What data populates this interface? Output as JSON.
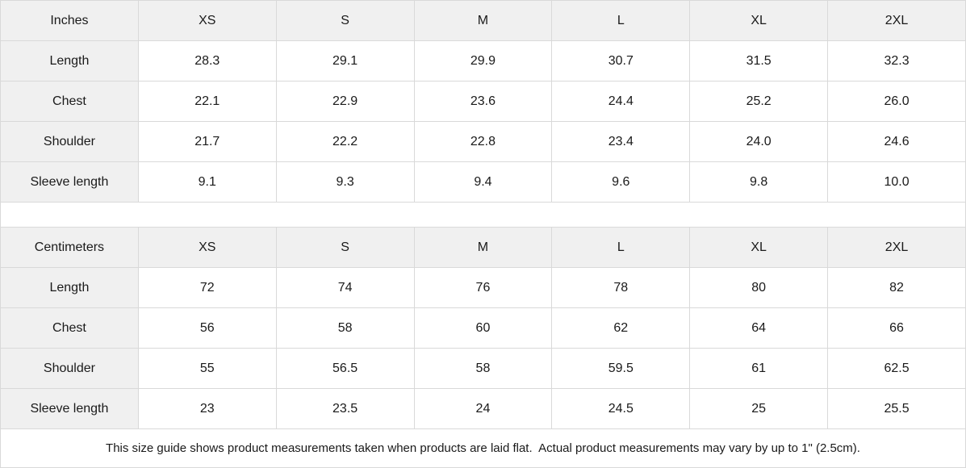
{
  "colors": {
    "header_background": "#f0f0f0",
    "label_background": "#f0f0f0",
    "cell_background": "#ffffff",
    "border": "#d9d9d9",
    "text": "#1a1a1a"
  },
  "tables": [
    {
      "unit_label": "Inches",
      "sizes": [
        "XS",
        "S",
        "M",
        "L",
        "XL",
        "2XL"
      ],
      "rows": [
        {
          "label": "Length",
          "values": [
            "28.3",
            "29.1",
            "29.9",
            "30.7",
            "31.5",
            "32.3"
          ]
        },
        {
          "label": "Chest",
          "values": [
            "22.1",
            "22.9",
            "23.6",
            "24.4",
            "25.2",
            "26.0"
          ]
        },
        {
          "label": "Shoulder",
          "values": [
            "21.7",
            "22.2",
            "22.8",
            "23.4",
            "24.0",
            "24.6"
          ]
        },
        {
          "label": "Sleeve length",
          "values": [
            "9.1",
            "9.3",
            "9.4",
            "9.6",
            "9.8",
            "10.0"
          ]
        }
      ]
    },
    {
      "unit_label": "Centimeters",
      "sizes": [
        "XS",
        "S",
        "M",
        "L",
        "XL",
        "2XL"
      ],
      "rows": [
        {
          "label": "Length",
          "values": [
            "72",
            "74",
            "76",
            "78",
            "80",
            "82"
          ]
        },
        {
          "label": "Chest",
          "values": [
            "56",
            "58",
            "60",
            "62",
            "64",
            "66"
          ]
        },
        {
          "label": "Shoulder",
          "values": [
            "55",
            "56.5",
            "58",
            "59.5",
            "61",
            "62.5"
          ]
        },
        {
          "label": "Sleeve length",
          "values": [
            "23",
            "23.5",
            "24",
            "24.5",
            "25",
            "25.5"
          ]
        }
      ]
    }
  ],
  "footer": {
    "note": "This size guide shows product measurements taken when products are laid flat.  Actual product measurements may vary by up to 1\" (2.5cm)."
  }
}
